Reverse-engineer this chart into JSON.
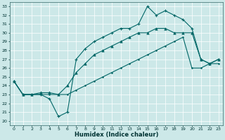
{
  "title": "",
  "xlabel": "Humidex (Indice chaleur)",
  "bg_color": "#cce8e8",
  "grid_color": "#aacccc",
  "line_color": "#006666",
  "x_ticks": [
    0,
    1,
    2,
    3,
    4,
    5,
    6,
    7,
    8,
    9,
    10,
    11,
    12,
    13,
    14,
    15,
    16,
    17,
    18,
    19,
    20,
    21,
    22,
    23
  ],
  "y_ticks": [
    20,
    21,
    22,
    23,
    24,
    25,
    26,
    27,
    28,
    29,
    30,
    31,
    32,
    33
  ],
  "xlim": [
    -0.5,
    23.5
  ],
  "ylim": [
    19.5,
    33.5
  ],
  "line1_x": [
    0,
    1,
    2,
    3,
    4,
    5,
    6,
    7,
    8,
    9,
    10,
    11,
    12,
    13,
    14,
    15,
    16,
    17,
    18,
    19,
    20,
    21,
    22,
    23
  ],
  "line1_y": [
    24.5,
    23.0,
    23.0,
    23.0,
    22.5,
    20.5,
    21.0,
    27.0,
    28.2,
    29.0,
    29.5,
    30.0,
    30.5,
    30.5,
    31.0,
    33.0,
    32.0,
    32.5,
    32.0,
    31.5,
    30.5,
    27.0,
    26.5,
    27.0
  ],
  "line2_x": [
    0,
    1,
    2,
    3,
    4,
    5,
    6,
    7,
    8,
    9,
    10,
    11,
    12,
    13,
    14,
    15,
    16,
    17,
    18,
    19,
    20,
    21,
    22,
    23
  ],
  "line2_y": [
    24.5,
    23.0,
    23.0,
    23.2,
    23.2,
    23.0,
    24.0,
    25.5,
    26.5,
    27.5,
    28.0,
    28.5,
    29.0,
    29.5,
    30.0,
    30.0,
    30.5,
    30.5,
    30.0,
    30.0,
    30.0,
    27.0,
    26.5,
    27.0
  ],
  "line3_x": [
    0,
    1,
    2,
    3,
    4,
    5,
    6,
    7,
    8,
    9,
    10,
    11,
    12,
    13,
    14,
    15,
    16,
    17,
    18,
    19,
    20,
    21,
    22,
    23
  ],
  "line3_y": [
    24.5,
    23.0,
    23.0,
    23.0,
    23.0,
    23.0,
    23.0,
    23.5,
    24.0,
    24.5,
    25.0,
    25.5,
    26.0,
    26.5,
    27.0,
    27.5,
    28.0,
    28.5,
    29.0,
    29.5,
    26.0,
    26.0,
    26.5,
    26.5
  ]
}
